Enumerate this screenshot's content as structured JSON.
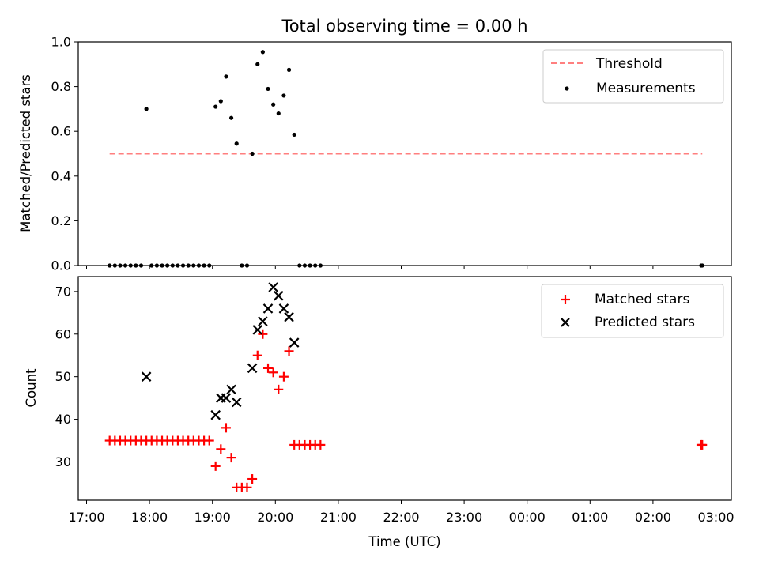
{
  "chart_data": [
    {
      "type": "scatter",
      "title": "Total observing time = 0.00 h",
      "xlabel": "",
      "ylabel": "Matched/Predicted stars",
      "ylim": [
        0,
        1.0
      ],
      "yticks": [
        "0.0",
        "0.2",
        "0.4",
        "0.6",
        "0.8",
        "1.0"
      ],
      "legend": {
        "placement": "top-right",
        "entries": [
          "Threshold",
          "Measurements"
        ]
      },
      "threshold": {
        "name": "Threshold",
        "y": 0.5,
        "x_start": "17:22",
        "x_end": "02:47",
        "color": "#ff7f7f",
        "style": "dashed"
      },
      "series": [
        {
          "name": "Measurements",
          "color": "#000000",
          "points": [
            [
              "17:22",
              0
            ],
            [
              "17:27",
              0
            ],
            [
              "17:32",
              0
            ],
            [
              "17:37",
              0
            ],
            [
              "17:42",
              0
            ],
            [
              "17:47",
              0
            ],
            [
              "17:52",
              0
            ],
            [
              "17:57",
              0.7
            ],
            [
              "18:02",
              0
            ],
            [
              "18:07",
              0
            ],
            [
              "18:12",
              0
            ],
            [
              "18:17",
              0
            ],
            [
              "18:22",
              0
            ],
            [
              "18:27",
              0
            ],
            [
              "18:32",
              0
            ],
            [
              "18:37",
              0
            ],
            [
              "18:42",
              0
            ],
            [
              "18:47",
              0
            ],
            [
              "18:52",
              0
            ],
            [
              "18:57",
              0
            ],
            [
              "19:03",
              0.71
            ],
            [
              "19:08",
              0.735
            ],
            [
              "19:13",
              0.845
            ],
            [
              "19:18",
              0.66
            ],
            [
              "19:23",
              0.545
            ],
            [
              "19:28",
              0
            ],
            [
              "19:33",
              0
            ],
            [
              "19:38",
              0.5
            ],
            [
              "19:43",
              0.9
            ],
            [
              "19:48",
              0.955
            ],
            [
              "19:53",
              0.79
            ],
            [
              "19:58",
              0.72
            ],
            [
              "20:03",
              0.68
            ],
            [
              "20:08",
              0.76
            ],
            [
              "20:13",
              0.875
            ],
            [
              "20:18",
              0.585
            ],
            [
              "20:23",
              0
            ],
            [
              "20:28",
              0
            ],
            [
              "20:33",
              0
            ],
            [
              "20:38",
              0
            ],
            [
              "20:43",
              0
            ],
            [
              "02:46",
              0
            ],
            [
              "02:47",
              0
            ]
          ]
        }
      ]
    },
    {
      "type": "scatter",
      "title": "",
      "xlabel": "Time (UTC)",
      "ylabel": "Count",
      "ylim": [
        21,
        73.5
      ],
      "yticks": [
        "30",
        "40",
        "50",
        "60",
        "70"
      ],
      "xticks": [
        "17:00",
        "18:00",
        "19:00",
        "20:00",
        "21:00",
        "22:00",
        "23:00",
        "00:00",
        "01:00",
        "02:00",
        "03:00"
      ],
      "legend": {
        "placement": "top-right",
        "entries": [
          "Matched stars",
          "Predicted stars"
        ]
      },
      "series": [
        {
          "name": "Matched stars",
          "color": "#ff0000",
          "marker": "+",
          "points": [
            [
              "17:22",
              35
            ],
            [
              "17:27",
              35
            ],
            [
              "17:32",
              35
            ],
            [
              "17:37",
              35
            ],
            [
              "17:42",
              35
            ],
            [
              "17:47",
              35
            ],
            [
              "17:52",
              35
            ],
            [
              "17:57",
              35
            ],
            [
              "18:02",
              35
            ],
            [
              "18:07",
              35
            ],
            [
              "18:12",
              35
            ],
            [
              "18:17",
              35
            ],
            [
              "18:22",
              35
            ],
            [
              "18:27",
              35
            ],
            [
              "18:32",
              35
            ],
            [
              "18:37",
              35
            ],
            [
              "18:42",
              35
            ],
            [
              "18:47",
              35
            ],
            [
              "18:52",
              35
            ],
            [
              "18:57",
              35
            ],
            [
              "19:03",
              29
            ],
            [
              "19:08",
              33
            ],
            [
              "19:13",
              38
            ],
            [
              "19:18",
              31
            ],
            [
              "19:23",
              24
            ],
            [
              "19:28",
              24
            ],
            [
              "19:33",
              24
            ],
            [
              "19:38",
              26
            ],
            [
              "19:43",
              55
            ],
            [
              "19:48",
              60
            ],
            [
              "19:53",
              52
            ],
            [
              "19:58",
              51
            ],
            [
              "20:03",
              47
            ],
            [
              "20:08",
              50
            ],
            [
              "20:13",
              56
            ],
            [
              "20:18",
              34
            ],
            [
              "20:23",
              34
            ],
            [
              "20:28",
              34
            ],
            [
              "20:33",
              34
            ],
            [
              "20:38",
              34
            ],
            [
              "20:43",
              34
            ],
            [
              "02:46",
              34
            ],
            [
              "02:47",
              34
            ]
          ]
        },
        {
          "name": "Predicted stars",
          "color": "#000000",
          "marker": "x",
          "points": [
            [
              "17:57",
              50
            ],
            [
              "19:03",
              41
            ],
            [
              "19:08",
              45
            ],
            [
              "19:13",
              45
            ],
            [
              "19:18",
              47
            ],
            [
              "19:23",
              44
            ],
            [
              "19:38",
              52
            ],
            [
              "19:43",
              61
            ],
            [
              "19:48",
              63
            ],
            [
              "19:53",
              66
            ],
            [
              "19:58",
              71
            ],
            [
              "20:03",
              69
            ],
            [
              "20:08",
              66
            ],
            [
              "20:13",
              64
            ],
            [
              "20:18",
              58
            ]
          ]
        }
      ]
    }
  ]
}
